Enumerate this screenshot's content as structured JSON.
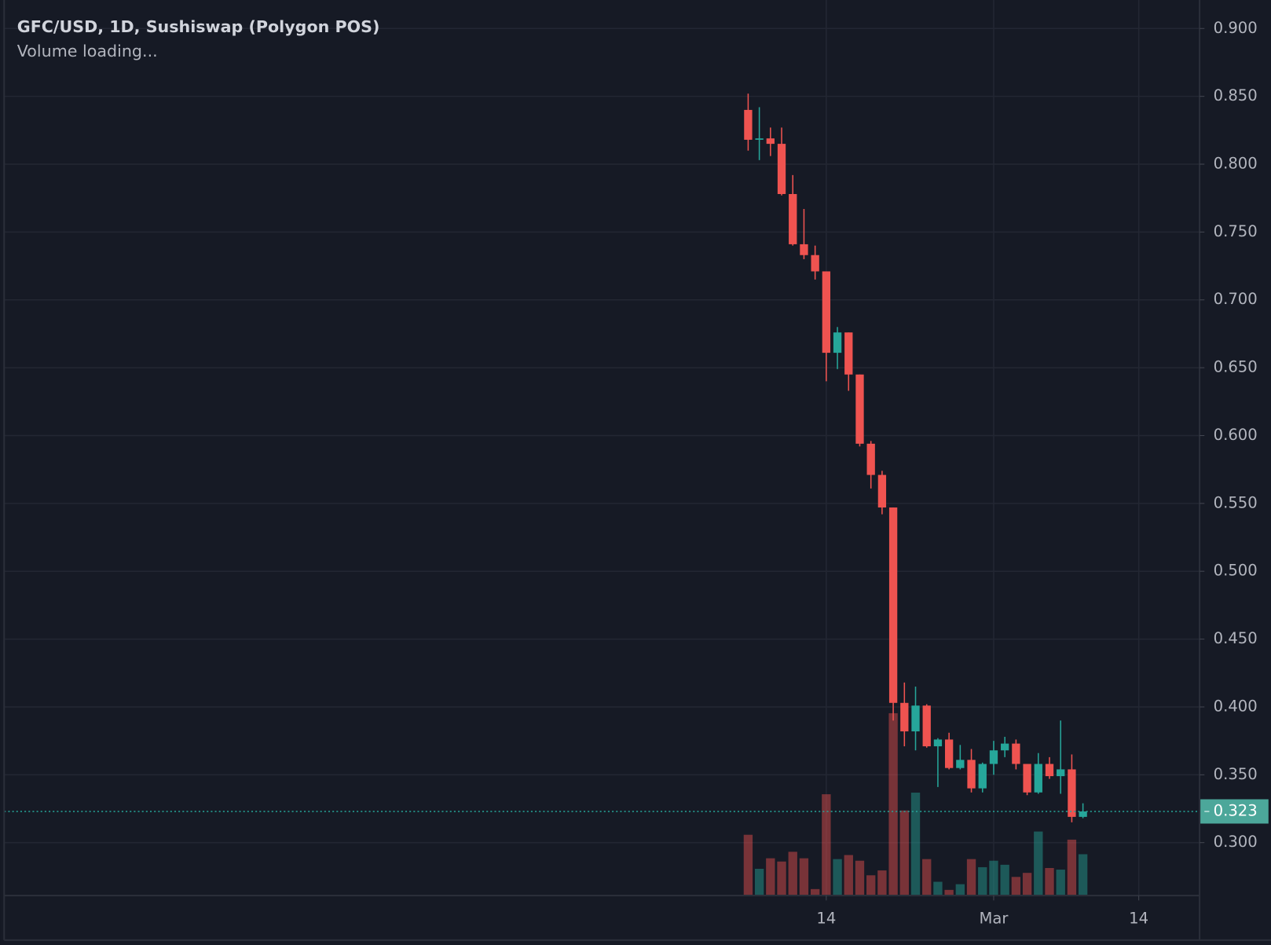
{
  "chart_data": {
    "type": "candlestick",
    "title": "GFC/USD, 1D, Sushiswap (Polygon POS)",
    "subtitle": "Volume loading...",
    "categories": [
      null,
      null,
      null,
      null,
      null,
      null,
      null,
      "14",
      null,
      null,
      null,
      null,
      null,
      null,
      null,
      null,
      null,
      null,
      null,
      null,
      null,
      null,
      "Mar",
      null,
      null,
      null,
      null,
      null,
      null,
      null,
      null,
      null,
      null,
      null,
      null,
      "14"
    ],
    "open": [
      0.84,
      0.818,
      0.819,
      0.815,
      0.778,
      0.741,
      0.733,
      0.721,
      0.661,
      0.676,
      0.645,
      0.594,
      0.571,
      0.547,
      0.403,
      0.382,
      0.401,
      0.371,
      0.376,
      0.355,
      0.361,
      0.34,
      0.358,
      0.368,
      0.373,
      0.358,
      0.337,
      0.358,
      0.349,
      0.354,
      0.319,
      null,
      null,
      null,
      null,
      null
    ],
    "high": [
      0.852,
      0.842,
      0.827,
      0.827,
      0.792,
      0.767,
      0.74,
      0.721,
      0.68,
      0.676,
      0.645,
      0.596,
      0.574,
      0.547,
      0.418,
      0.415,
      0.402,
      0.377,
      0.381,
      0.372,
      0.369,
      0.359,
      0.375,
      0.378,
      0.376,
      0.358,
      0.366,
      0.363,
      0.39,
      0.365,
      0.329,
      null,
      null,
      null,
      null,
      null
    ],
    "low": [
      0.81,
      0.803,
      0.806,
      0.777,
      0.74,
      0.73,
      0.715,
      0.64,
      0.649,
      0.633,
      0.592,
      0.561,
      0.542,
      0.39,
      0.371,
      0.368,
      0.37,
      0.341,
      0.354,
      0.354,
      0.337,
      0.337,
      0.35,
      0.363,
      0.354,
      0.335,
      0.336,
      0.347,
      0.336,
      0.315,
      0.318,
      null,
      null,
      null,
      null,
      null
    ],
    "close": [
      0.818,
      0.819,
      0.815,
      0.778,
      0.741,
      0.733,
      0.721,
      0.661,
      0.676,
      0.645,
      0.594,
      0.571,
      0.547,
      0.403,
      0.382,
      0.401,
      0.371,
      0.376,
      0.355,
      0.361,
      0.34,
      0.358,
      0.368,
      0.373,
      0.358,
      0.337,
      0.358,
      0.349,
      0.354,
      0.319,
      0.323,
      null,
      null,
      null,
      null,
      null
    ],
    "volume": [
      75,
      33,
      46,
      42,
      54,
      46,
      8,
      125,
      45,
      50,
      43,
      25,
      31,
      225,
      105,
      127,
      45,
      17,
      7,
      14,
      45,
      35,
      43,
      38,
      23,
      28,
      79,
      34,
      32,
      69,
      51,
      null,
      null,
      null,
      null,
      null
    ],
    "up_color": "#26a69a",
    "down_color": "#ef5350",
    "ylim": [
      0.261,
      0.921
    ],
    "yticks": [
      {
        "value": 0.3,
        "label": "0.300"
      },
      {
        "value": 0.35,
        "label": "0.350"
      },
      {
        "value": 0.4,
        "label": "0.400"
      },
      {
        "value": 0.45,
        "label": "0.450"
      },
      {
        "value": 0.5,
        "label": "0.500"
      },
      {
        "value": 0.55,
        "label": "0.550"
      },
      {
        "value": 0.6,
        "label": "0.600"
      },
      {
        "value": 0.65,
        "label": "0.650"
      },
      {
        "value": 0.7,
        "label": "0.700"
      },
      {
        "value": 0.75,
        "label": "0.750"
      },
      {
        "value": 0.8,
        "label": "0.800"
      },
      {
        "value": 0.85,
        "label": "0.850"
      },
      {
        "value": 0.9,
        "label": "0.900"
      }
    ],
    "grid": true
  }
}
